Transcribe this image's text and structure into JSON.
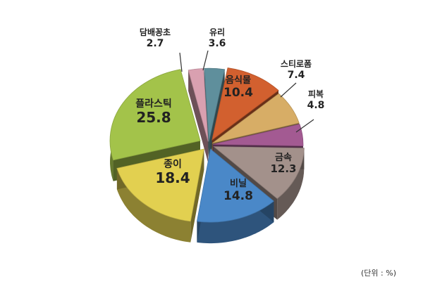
{
  "chart_data": {
    "type": "pie",
    "style": "exploded-3d",
    "unit_note": "(단위 : %)",
    "slices": [
      {
        "label": "음식물",
        "value": 10.4,
        "color": "#d2602f"
      },
      {
        "label": "스티로폼",
        "value": 7.4,
        "color": "#d7ad66"
      },
      {
        "label": "피복",
        "value": 4.8,
        "color": "#a35a92"
      },
      {
        "label": "금속",
        "value": 12.3,
        "color": "#a3918b"
      },
      {
        "label": "비닐",
        "value": 14.8,
        "color": "#4a88c8"
      },
      {
        "label": "종이",
        "value": 18.4,
        "color": "#e2d050"
      },
      {
        "label": "플라스틱",
        "value": 25.8,
        "color": "#a3c34a"
      },
      {
        "label": "담배꽁초",
        "value": 2.7,
        "color": "#d9a0b0"
      },
      {
        "label": "유리",
        "value": 3.6,
        "color": "#5f8f9c"
      }
    ]
  }
}
